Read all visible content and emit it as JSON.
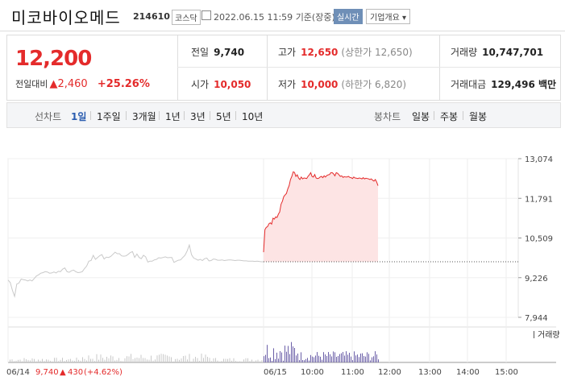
{
  "stock": {
    "name": "미코바이오메드",
    "code": "214610",
    "market": "코스닥",
    "datetime": "2022.06.15 11:59",
    "basis": "기준(장중)",
    "realtime_label": "실시간",
    "info_label": "기업개요"
  },
  "quote": {
    "price": "12,200",
    "change_label": "전일대비",
    "change_value": "2,460",
    "change_pct": "+25.26%",
    "prev_close_label": "전일",
    "prev_close": "9,740",
    "high_label": "고가",
    "high": "12,650",
    "upper_limit": "(상한가 12,650)",
    "volume_label": "거래량",
    "volume": "10,747,701",
    "open_label": "시가",
    "open": "10,050",
    "low_label": "저가",
    "low": "10,000",
    "lower_limit": "(하한가 6,820)",
    "amount_label": "거래대금",
    "amount": "129,496 백만"
  },
  "period": {
    "line_title": "선차트",
    "line_buttons": [
      "1일",
      "1주일",
      "3개월",
      "1년",
      "3년",
      "5년",
      "10년"
    ],
    "candle_title": "봉차트",
    "candle_buttons": [
      "일봉",
      "주봉",
      "월봉"
    ]
  },
  "footer": {
    "prev_date": "06/14",
    "prev_close": "9,740",
    "prev_change": "430",
    "prev_pct": "(+4.62%)"
  },
  "chart_data": {
    "type": "line",
    "y_ticks": [
      "13,074",
      "11,791",
      "10,509",
      "9,226",
      "7,944"
    ],
    "ylim": [
      7944,
      13074
    ],
    "x_labels": [
      "06/14",
      "06/15",
      "10:00",
      "11:00",
      "12:00",
      "13:00",
      "14:00",
      "15:00"
    ],
    "reference_price": 9740,
    "volume_label": "거래량",
    "series": [
      {
        "values_prev_day": [
          9150,
          9070,
          8820,
          8620,
          9020,
          9050,
          9180,
          9160,
          9150,
          9120,
          9150,
          9120,
          9200,
          9280,
          9320,
          9370,
          9390,
          9420,
          9410,
          9370,
          9380,
          9410,
          9380,
          9430,
          9420,
          9500,
          9540,
          9420,
          9400,
          9450,
          9470,
          9420,
          9390,
          9400,
          9420,
          9520,
          9600,
          9760,
          9780,
          9950,
          9820,
          9880,
          9940,
          9970,
          9830,
          9890,
          9880,
          9910,
          9980,
          10050,
          10000,
          10000,
          9930,
          9920,
          9930,
          9980,
          10040,
          10070,
          9880,
          9990,
          9880,
          9840,
          9950,
          9900,
          9730,
          9760,
          9760,
          9800,
          9820,
          9870,
          9860,
          9880,
          9900,
          9870,
          9880,
          9880,
          9720,
          9760,
          9790,
          9800,
          9880,
          9950,
          10090,
          10280,
          9970,
          9860,
          9830,
          9790,
          9820,
          9780,
          9840,
          9860,
          9770,
          9780,
          9830,
          9820,
          9790,
          9790,
          9800,
          9780,
          9790,
          9800,
          9800,
          9790,
          9780,
          9790,
          9790,
          9780,
          9770,
          9770,
          9760,
          9760,
          9760,
          9750,
          9760,
          9750,
          9740,
          9740
        ]
      },
      {
        "values_today": [
          10050,
          10780,
          10850,
          10880,
          10970,
          11000,
          10960,
          11150,
          11120,
          11190,
          11170,
          11280,
          11350,
          11600,
          11700,
          11850,
          11900,
          11950,
          12100,
          12200,
          12400,
          12500,
          12650,
          12630,
          12500,
          12550,
          12450,
          12400,
          12480,
          12420,
          12450,
          12440,
          12430,
          12500,
          12550,
          12620,
          12500,
          12480,
          12560,
          12450,
          12430,
          12440,
          12480,
          12500,
          12460,
          12520,
          12480,
          12530,
          12550,
          12560,
          12620,
          12620,
          12580,
          12520,
          12620,
          12600,
          12550,
          12500,
          12520,
          12470,
          12490,
          12480,
          12480,
          12500,
          12470,
          12460,
          12430,
          12480,
          12450,
          12440,
          12430,
          12450,
          12440,
          12420,
          12460,
          12420,
          12440,
          12430,
          12420,
          12400,
          12420,
          12380,
          12350,
          12400,
          12320,
          12200
        ]
      }
    ]
  }
}
